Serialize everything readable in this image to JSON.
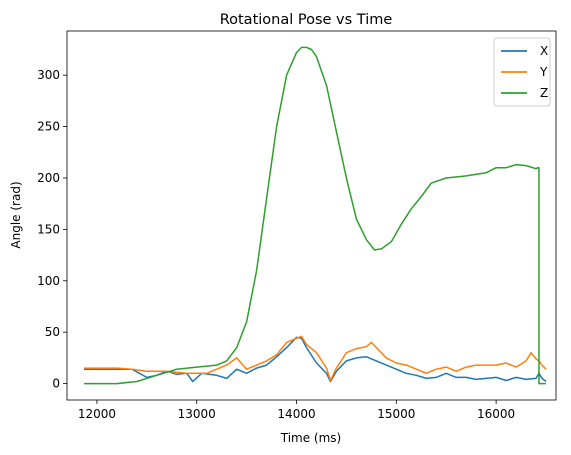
{
  "chart_data": {
    "type": "line",
    "title": "Rotational Pose vs Time",
    "xlabel": "Time (ms)",
    "ylabel": "Angle (rad)",
    "xlim": [
      11700,
      16600
    ],
    "ylim": [
      -16,
      343
    ],
    "xticks": [
      12000,
      13000,
      14000,
      15000,
      16000
    ],
    "yticks": [
      0,
      50,
      100,
      150,
      200,
      250,
      300
    ],
    "grid": false,
    "legend": "top-right",
    "series": [
      {
        "name": "X",
        "color": "#1f77b4",
        "x": [
          11870,
          12000,
          12200,
          12350,
          12500,
          12600,
          12700,
          12800,
          12900,
          12960,
          13050,
          13200,
          13300,
          13400,
          13500,
          13600,
          13700,
          13800,
          13900,
          14000,
          14050,
          14100,
          14200,
          14300,
          14340,
          14400,
          14500,
          14600,
          14700,
          14800,
          14900,
          15000,
          15100,
          15200,
          15300,
          15400,
          15500,
          15600,
          15700,
          15800,
          15900,
          16000,
          16100,
          16200,
          16300,
          16400,
          16430,
          16460,
          16500
        ],
        "y": [
          14,
          14,
          14,
          14,
          6,
          8,
          12,
          9,
          10,
          2,
          10,
          8,
          5,
          14,
          10,
          15,
          18,
          26,
          35,
          45,
          44,
          35,
          20,
          10,
          2,
          12,
          22,
          25,
          26,
          22,
          18,
          14,
          10,
          8,
          5,
          6,
          10,
          6,
          6,
          4,
          5,
          6,
          3,
          6,
          4,
          5,
          10,
          5,
          2
        ]
      },
      {
        "name": "Y",
        "color": "#ff7f0e",
        "x": [
          11870,
          12000,
          12200,
          12350,
          12500,
          12700,
          12900,
          13100,
          13300,
          13400,
          13500,
          13600,
          13700,
          13800,
          13900,
          14000,
          14050,
          14100,
          14200,
          14300,
          14340,
          14400,
          14500,
          14600,
          14700,
          14750,
          14800,
          14900,
          15000,
          15100,
          15200,
          15300,
          15400,
          15500,
          15600,
          15700,
          15800,
          15900,
          16000,
          16100,
          16200,
          16300,
          16350,
          16400,
          16430,
          16460,
          16500
        ],
        "y": [
          15,
          15,
          15,
          14,
          12,
          12,
          10,
          10,
          18,
          25,
          14,
          18,
          22,
          28,
          40,
          44,
          46,
          38,
          30,
          15,
          3,
          15,
          30,
          34,
          36,
          40,
          35,
          25,
          20,
          18,
          14,
          10,
          14,
          16,
          12,
          16,
          18,
          18,
          18,
          20,
          16,
          22,
          30,
          24,
          22,
          18,
          14
        ]
      },
      {
        "name": "Z",
        "color": "#2ca02c",
        "x": [
          11870,
          12000,
          12200,
          12400,
          12600,
          12800,
          13000,
          13200,
          13300,
          13400,
          13500,
          13600,
          13700,
          13800,
          13900,
          14000,
          14050,
          14100,
          14150,
          14200,
          14300,
          14400,
          14500,
          14600,
          14700,
          14780,
          14850,
          14950,
          15050,
          15150,
          15250,
          15350,
          15500,
          15700,
          15900,
          16000,
          16100,
          16200,
          16300,
          16400,
          16420,
          16430,
          16430,
          16500
        ],
        "y": [
          0,
          0,
          0,
          2,
          8,
          14,
          16,
          18,
          22,
          35,
          60,
          110,
          180,
          250,
          300,
          322,
          327,
          327,
          325,
          318,
          290,
          245,
          200,
          160,
          140,
          130,
          131,
          138,
          155,
          170,
          182,
          195,
          200,
          202,
          205,
          210,
          210,
          213,
          212,
          209,
          210,
          210,
          0,
          0
        ]
      }
    ]
  }
}
